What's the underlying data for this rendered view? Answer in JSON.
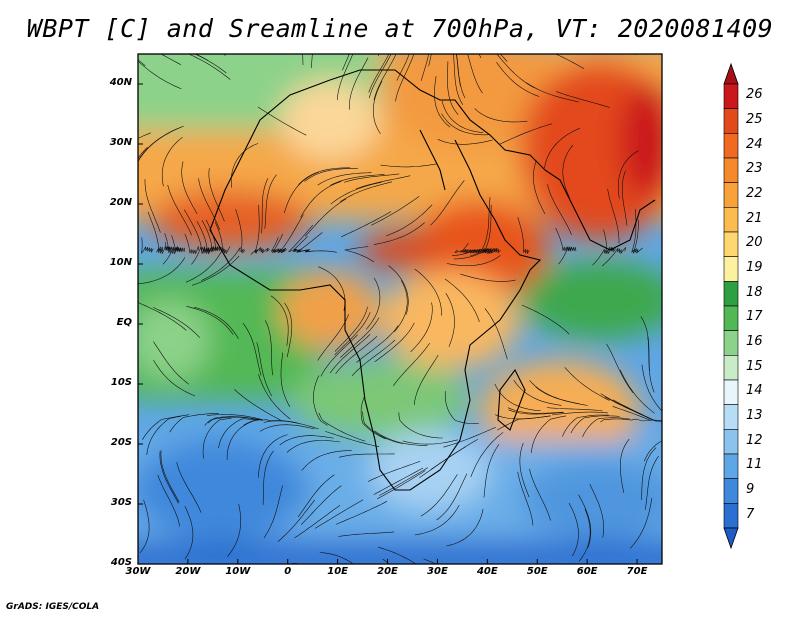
{
  "title": "WBPT [C] and Sreamline at 700hPa, VT: 2020081409",
  "footer": "GrADS: IGES/COLA",
  "lat_labels": [
    "40N",
    "30N",
    "20N",
    "10N",
    "EQ",
    "10S",
    "20S",
    "30S",
    "40S"
  ],
  "lon_labels": [
    "30W",
    "20W",
    "10W",
    "0",
    "10E",
    "20E",
    "30E",
    "40E",
    "50E",
    "60E",
    "70E"
  ],
  "colorbar": {
    "labels": [
      "26",
      "25",
      "24",
      "23",
      "22",
      "21",
      "20",
      "19",
      "18",
      "17",
      "16",
      "15",
      "14",
      "13",
      "12",
      "11",
      "9",
      "7"
    ],
    "colors": [
      "#a50f15",
      "#cb181d",
      "#e34a1b",
      "#f06a22",
      "#f5892b",
      "#f9a23a",
      "#fbbc4f",
      "#fdd870",
      "#fdf1a0",
      "#2ea043",
      "#52b855",
      "#8dd28a",
      "#c9ecc6",
      "#e8f6fb",
      "#b7dcf5",
      "#8cc3ee",
      "#5ea6e5",
      "#3f88db",
      "#2a6fd1",
      "#1d5bc7"
    ]
  },
  "map": {
    "lon_range": [
      -30,
      75
    ],
    "lat_range": [
      -40,
      45
    ]
  }
}
